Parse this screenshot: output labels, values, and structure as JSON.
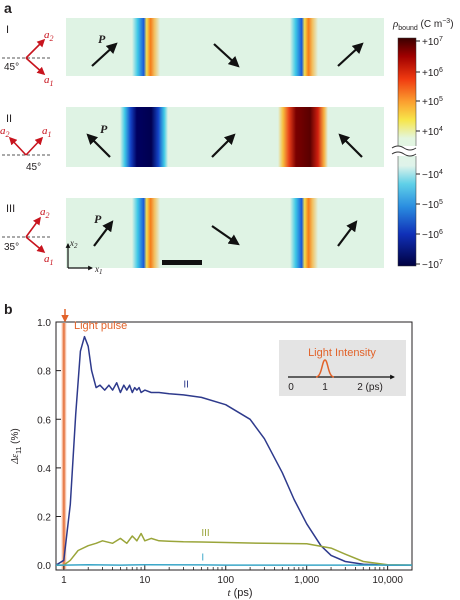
{
  "panel_a": {
    "label": "a",
    "colorbar": {
      "title_sym": "ρ",
      "title_sub": "bound",
      "title_unit": " (C m",
      "title_unit_sup": "−3",
      "title_close": ")",
      "ticks": [
        {
          "base": "+10",
          "exp": "7"
        },
        {
          "base": "+10",
          "exp": "6"
        },
        {
          "base": "+10",
          "exp": "5"
        },
        {
          "base": "+10",
          "exp": "4"
        },
        {
          "base": "−10",
          "exp": "4"
        },
        {
          "base": "−10",
          "exp": "5"
        },
        {
          "base": "−10",
          "exp": "6"
        },
        {
          "base": "−10",
          "exp": "7"
        }
      ]
    },
    "rows": [
      {
        "numeral": "I",
        "angle": "45°",
        "a1": "a",
        "a1_sub": "1",
        "a2": "a",
        "a2_sub": "2",
        "p_label": "P"
      },
      {
        "numeral": "II",
        "angle": "45°",
        "a1": "a",
        "a1_sub": "1",
        "a2": "a",
        "a2_sub": "2",
        "p_label": "P"
      },
      {
        "numeral": "III",
        "angle": "35°",
        "a1": "a",
        "a1_sub": "1",
        "a2": "a",
        "a2_sub": "2",
        "p_label": "P"
      }
    ],
    "axes_label_x": "x",
    "axes_label_x_sub": "1",
    "axes_label_y": "x",
    "axes_label_y_sub": "2"
  },
  "panel_b": {
    "label": "b",
    "light_pulse": "Light pulse",
    "inset": {
      "title": "Light Intensity",
      "ticks": [
        "0",
        "1",
        "2 (ps)"
      ]
    },
    "chart_data": {
      "type": "line",
      "xscale": "log",
      "xlabel": "t (ps)",
      "ylabel": "Δε11 (%)",
      "ylabel_sym": "Δε",
      "ylabel_sub": "11",
      "ylabel_unit": " (%)",
      "xlabel_sym": "t",
      "xlabel_unit": " (ps)",
      "xlim": [
        0.8,
        20000
      ],
      "ylim": [
        -0.02,
        1.0
      ],
      "xticks": [
        {
          "v": 1,
          "label": "1"
        },
        {
          "v": 10,
          "label": "10"
        },
        {
          "v": 100,
          "label": "100"
        },
        {
          "v": 1000,
          "label": "1,000"
        },
        {
          "v": 10000,
          "label": "10,000"
        }
      ],
      "yticks": [
        {
          "v": 0,
          "label": "0.0"
        },
        {
          "v": 0.2,
          "label": "0.2"
        },
        {
          "v": 0.4,
          "label": "0.4"
        },
        {
          "v": 0.6,
          "label": "0.6"
        },
        {
          "v": 0.8,
          "label": "0.8"
        },
        {
          "v": 1.0,
          "label": "1.0"
        }
      ],
      "series": [
        {
          "name": "II",
          "color": "#2e3a8c",
          "x": [
            0.8,
            1.0,
            1.2,
            1.4,
            1.6,
            1.8,
            2.0,
            2.2,
            2.5,
            2.8,
            3.2,
            3.6,
            4.0,
            4.5,
            5,
            5.5,
            6,
            6.5,
            7,
            7.5,
            8,
            8.5,
            9,
            10,
            12,
            15,
            20,
            30,
            50,
            100,
            200,
            300,
            500,
            700,
            1000,
            1500,
            2000,
            3000,
            5000,
            10000,
            20000
          ],
          "y": [
            0.0,
            0.02,
            0.25,
            0.62,
            0.88,
            0.94,
            0.9,
            0.8,
            0.73,
            0.74,
            0.72,
            0.74,
            0.72,
            0.75,
            0.71,
            0.74,
            0.72,
            0.74,
            0.71,
            0.73,
            0.72,
            0.73,
            0.71,
            0.72,
            0.71,
            0.71,
            0.705,
            0.7,
            0.69,
            0.66,
            0.6,
            0.52,
            0.38,
            0.27,
            0.17,
            0.08,
            0.04,
            0.015,
            0.004,
            0.0,
            0.0
          ]
        },
        {
          "name": "III",
          "color": "#9aa53a",
          "x": [
            0.8,
            1.0,
            1.2,
            1.5,
            2.0,
            2.5,
            3,
            4,
            5,
            6,
            7,
            8,
            9,
            10,
            12,
            15,
            20,
            30,
            50,
            100,
            300,
            1000,
            2000,
            3000,
            5000,
            10000,
            20000
          ],
          "y": [
            0.0,
            0.0,
            0.02,
            0.06,
            0.08,
            0.09,
            0.1,
            0.09,
            0.11,
            0.09,
            0.12,
            0.1,
            0.13,
            0.1,
            0.11,
            0.1,
            0.098,
            0.096,
            0.095,
            0.093,
            0.09,
            0.088,
            0.07,
            0.045,
            0.015,
            0.002,
            0.0
          ]
        },
        {
          "name": "I",
          "color": "#3aa6c8",
          "x": [
            0.8,
            1,
            2,
            5,
            10,
            50,
            100,
            1000,
            10000,
            20000
          ],
          "y": [
            0.0,
            0.0,
            0.002,
            0.0,
            0.002,
            0.001,
            0.0,
            0.0,
            0.0,
            0.0
          ]
        }
      ]
    }
  }
}
